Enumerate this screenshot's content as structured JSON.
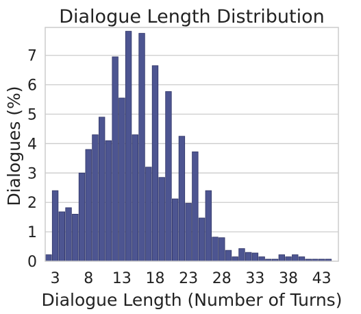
{
  "chart_data": {
    "type": "bar",
    "title": "Dialogue Length Distribution",
    "xlabel": "Dialogue Length (Number of Turns)",
    "ylabel": "Dialogues (%)",
    "bar_color": "#4d5591",
    "bar_edge_color": "#2f3466",
    "grid_color": "#cccccc",
    "grid": true,
    "x": [
      2,
      3,
      4,
      5,
      6,
      7,
      8,
      9,
      10,
      11,
      12,
      13,
      14,
      15,
      16,
      17,
      18,
      19,
      20,
      21,
      22,
      23,
      24,
      25,
      26,
      27,
      28,
      29,
      30,
      31,
      32,
      33,
      34,
      35,
      36,
      37,
      38,
      39,
      40,
      41,
      42,
      43,
      44,
      45,
      46
    ],
    "values": [
      0.22,
      2.4,
      1.68,
      1.82,
      1.6,
      3.0,
      3.8,
      4.3,
      4.9,
      4.1,
      6.95,
      5.55,
      7.82,
      4.3,
      7.75,
      3.2,
      6.65,
      2.85,
      5.77,
      2.12,
      4.25,
      1.97,
      3.72,
      1.47,
      2.4,
      0.82,
      0.8,
      0.37,
      0.15,
      0.43,
      0.3,
      0.28,
      0.15,
      0.07,
      0.07,
      0.22,
      0.15,
      0.22,
      0.15,
      0.07,
      0.07,
      0.07,
      0.07,
      0.0,
      0.0
    ],
    "xticks": [
      3,
      8,
      13,
      18,
      23,
      28,
      33,
      38,
      43
    ],
    "yticks": [
      0,
      1,
      2,
      3,
      4,
      5,
      6,
      7
    ],
    "xlim": [
      1.5,
      45.5
    ],
    "ylim": [
      0,
      7.95
    ]
  }
}
